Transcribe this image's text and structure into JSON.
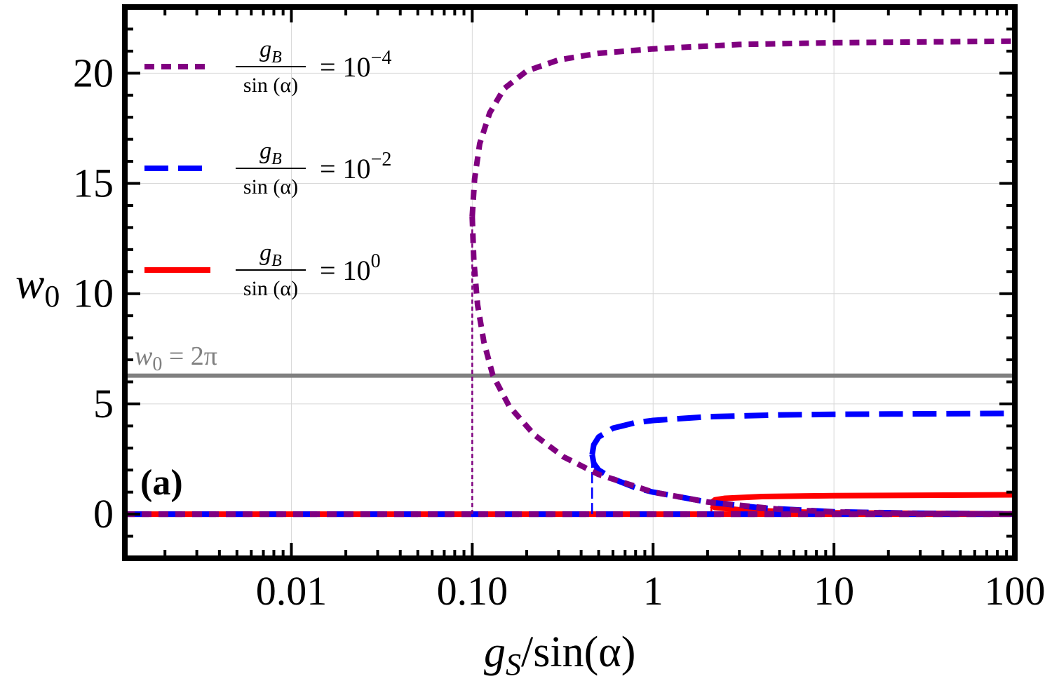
{
  "chart_data": {
    "type": "line",
    "panel_label": "(a)",
    "xlabel": "g_S/sin(α)",
    "xlabel_parts": {
      "var": "g",
      "sub": "S",
      "rest": "/sin(α)"
    },
    "ylabel": "w0",
    "ylabel_parts": {
      "var": "w",
      "sub": "0"
    },
    "x_scale": "log",
    "xlim": [
      0.0012,
      100
    ],
    "ylim": [
      -2,
      23
    ],
    "x_ticks": [
      0.01,
      0.1,
      1,
      10,
      100
    ],
    "x_tick_labels": [
      "0.01",
      "0.10",
      "1",
      "10",
      "100"
    ],
    "y_ticks": [
      0,
      5,
      10,
      15,
      20
    ],
    "y_tick_labels": [
      "0",
      "5",
      "10",
      "15",
      "20"
    ],
    "grid": true,
    "reference_line": {
      "y": 6.283,
      "label": "w0 = 2π",
      "label_parts": {
        "var": "w",
        "sub": "0",
        "rest": " = 2π"
      },
      "color": "#808080"
    },
    "legend": {
      "position": "top-left",
      "numerator": "g",
      "numerator_sub": "B",
      "denominator": "sin (α)"
    },
    "series": [
      {
        "name": "g_B/sin(α) = 10^-4",
        "legend_equals": "= 10",
        "legend_exponent": "−4",
        "color": "#800080",
        "style": "dotted",
        "critical_x": 0.1,
        "upper_branch": [
          [
            0.1,
            13.5
          ],
          [
            0.103,
            15.2
          ],
          [
            0.11,
            16.8
          ],
          [
            0.125,
            18.2
          ],
          [
            0.15,
            19.3
          ],
          [
            0.2,
            20.1
          ],
          [
            0.3,
            20.6
          ],
          [
            0.5,
            20.9
          ],
          [
            1,
            21.1
          ],
          [
            3,
            21.3
          ],
          [
            10,
            21.38
          ],
          [
            100,
            21.45
          ]
        ],
        "lower_branch": [
          [
            0.1,
            13.5
          ],
          [
            0.102,
            11.5
          ],
          [
            0.107,
            9.5
          ],
          [
            0.116,
            7.8
          ],
          [
            0.13,
            6.3
          ],
          [
            0.16,
            4.9
          ],
          [
            0.22,
            3.6
          ],
          [
            0.32,
            2.6
          ],
          [
            0.5,
            1.8
          ],
          [
            1,
            1.0
          ],
          [
            2,
            0.55
          ],
          [
            5,
            0.22
          ],
          [
            10,
            0.1
          ],
          [
            30,
            0.03
          ],
          [
            100,
            0.01
          ]
        ],
        "zero_branch": [
          [
            0.0012,
            0
          ],
          [
            100,
            0
          ]
        ]
      },
      {
        "name": "g_B/sin(α) = 10^-2",
        "legend_equals": "= 10",
        "legend_exponent": "−2",
        "color": "#0000ff",
        "style": "dashed",
        "critical_x": 0.46,
        "upper_branch": [
          [
            0.46,
            2.7
          ],
          [
            0.47,
            3.15
          ],
          [
            0.5,
            3.5
          ],
          [
            0.6,
            3.9
          ],
          [
            0.8,
            4.15
          ],
          [
            1,
            4.25
          ],
          [
            2,
            4.42
          ],
          [
            5,
            4.5
          ],
          [
            10,
            4.53
          ],
          [
            100,
            4.57
          ]
        ],
        "lower_branch": [
          [
            0.46,
            2.7
          ],
          [
            0.47,
            2.3
          ],
          [
            0.5,
            2.0
          ],
          [
            0.6,
            1.6
          ],
          [
            0.8,
            1.2
          ],
          [
            1,
            1.0
          ],
          [
            2,
            0.55
          ],
          [
            4,
            0.28
          ],
          [
            10,
            0.11
          ],
          [
            30,
            0.04
          ],
          [
            100,
            0.01
          ]
        ],
        "zero_branch": [
          [
            0.0012,
            0
          ],
          [
            100,
            0
          ]
        ]
      },
      {
        "name": "g_B/sin(α) = 10^0",
        "legend_equals": "= 10",
        "legend_exponent": "0",
        "color": "#ff0000",
        "style": "solid",
        "critical_x": 2.1,
        "upper_branch": [
          [
            2.1,
            0.4
          ],
          [
            2.12,
            0.55
          ],
          [
            2.2,
            0.65
          ],
          [
            2.5,
            0.72
          ],
          [
            4,
            0.8
          ],
          [
            10,
            0.84
          ],
          [
            100,
            0.88
          ]
        ],
        "lower_branch": [
          [
            2.1,
            0.4
          ],
          [
            2.2,
            0.3
          ],
          [
            3,
            0.2
          ],
          [
            5,
            0.12
          ],
          [
            10,
            0.06
          ],
          [
            100,
            0.01
          ]
        ],
        "zero_branch": [
          [
            0.0012,
            0
          ],
          [
            100,
            0
          ]
        ]
      }
    ]
  }
}
